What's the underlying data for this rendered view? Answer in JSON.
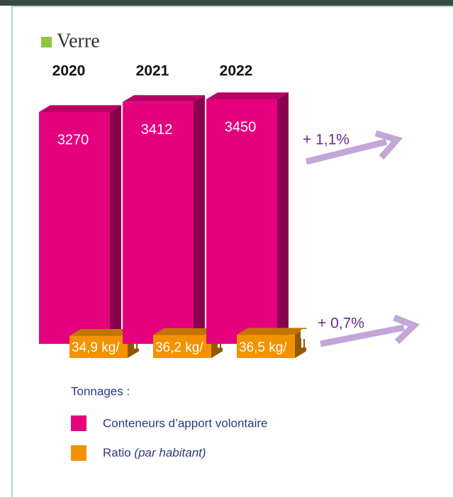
{
  "chart_data": {
    "type": "bar3d",
    "title": "Verre",
    "categories": [
      "2020",
      "2021",
      "2022"
    ],
    "series": [
      {
        "name": "Conteneurs d’apport volontaire",
        "color": "#e5007e",
        "values": [
          3270,
          3412,
          3450
        ],
        "value_labels": [
          "3270",
          "3412",
          "3450"
        ]
      },
      {
        "name": "Ratio",
        "name_note": "(par habitant)",
        "color": "#f39200",
        "values": [
          34.9,
          36.2,
          36.5
        ],
        "value_labels": [
          "34,9 kg/",
          "36,2 kg/",
          "36,5 kg/"
        ]
      }
    ],
    "legend_title": "Tonnages :",
    "annotations": [
      "+ 1,1%",
      "+ 0,7%"
    ]
  }
}
